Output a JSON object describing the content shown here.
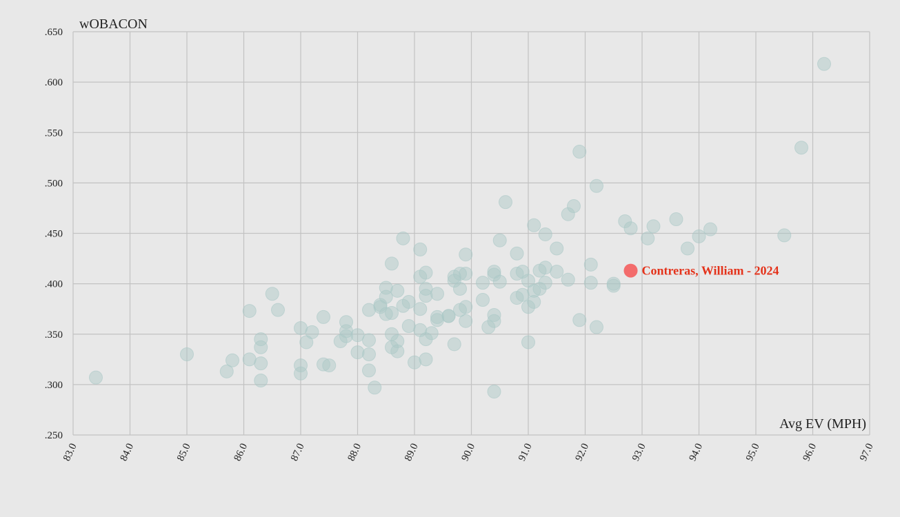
{
  "chart_data": {
    "type": "scatter",
    "xlabel": "Avg EV (MPH)",
    "ylabel": "wOBACON",
    "xlim": [
      83.0,
      97.0
    ],
    "ylim": [
      0.25,
      0.65
    ],
    "x_ticks": [
      "83.0",
      "84.0",
      "85.0",
      "86.0",
      "87.0",
      "88.0",
      "89.0",
      "90.0",
      "91.0",
      "92.0",
      "93.0",
      "94.0",
      "95.0",
      "96.0",
      "97.0"
    ],
    "y_ticks": [
      ".250",
      ".300",
      ".350",
      ".400",
      ".450",
      ".500",
      ".550",
      ".600",
      ".650"
    ],
    "grid": true,
    "highlight": {
      "label": "Contreras, William - 2024",
      "x": 92.8,
      "y": 0.413,
      "color": "#f36c6c"
    },
    "points": [
      [
        83.4,
        0.307
      ],
      [
        85.0,
        0.33
      ],
      [
        85.7,
        0.313
      ],
      [
        85.8,
        0.324
      ],
      [
        86.1,
        0.325
      ],
      [
        86.1,
        0.373
      ],
      [
        86.3,
        0.345
      ],
      [
        86.3,
        0.337
      ],
      [
        86.3,
        0.321
      ],
      [
        86.3,
        0.304
      ],
      [
        86.5,
        0.39
      ],
      [
        86.6,
        0.374
      ],
      [
        87.0,
        0.356
      ],
      [
        87.0,
        0.319
      ],
      [
        87.0,
        0.311
      ],
      [
        87.1,
        0.342
      ],
      [
        87.2,
        0.352
      ],
      [
        87.4,
        0.367
      ],
      [
        87.4,
        0.32
      ],
      [
        87.5,
        0.319
      ],
      [
        87.7,
        0.343
      ],
      [
        87.8,
        0.362
      ],
      [
        87.8,
        0.353
      ],
      [
        87.8,
        0.348
      ],
      [
        88.0,
        0.349
      ],
      [
        88.0,
        0.332
      ],
      [
        88.2,
        0.374
      ],
      [
        88.2,
        0.344
      ],
      [
        88.2,
        0.33
      ],
      [
        88.2,
        0.314
      ],
      [
        88.3,
        0.297
      ],
      [
        88.4,
        0.379
      ],
      [
        88.4,
        0.377
      ],
      [
        88.5,
        0.396
      ],
      [
        88.5,
        0.387
      ],
      [
        88.5,
        0.37
      ],
      [
        88.6,
        0.42
      ],
      [
        88.6,
        0.371
      ],
      [
        88.6,
        0.35
      ],
      [
        88.6,
        0.337
      ],
      [
        88.7,
        0.393
      ],
      [
        88.7,
        0.343
      ],
      [
        88.7,
        0.333
      ],
      [
        88.8,
        0.445
      ],
      [
        88.8,
        0.378
      ],
      [
        88.9,
        0.382
      ],
      [
        88.9,
        0.358
      ],
      [
        89.0,
        0.322
      ],
      [
        89.1,
        0.434
      ],
      [
        89.1,
        0.407
      ],
      [
        89.1,
        0.375
      ],
      [
        89.1,
        0.354
      ],
      [
        89.2,
        0.411
      ],
      [
        89.2,
        0.395
      ],
      [
        89.2,
        0.388
      ],
      [
        89.2,
        0.345
      ],
      [
        89.2,
        0.325
      ],
      [
        89.3,
        0.351
      ],
      [
        89.4,
        0.39
      ],
      [
        89.4,
        0.367
      ],
      [
        89.4,
        0.364
      ],
      [
        89.6,
        0.368
      ],
      [
        89.6,
        0.368
      ],
      [
        89.7,
        0.407
      ],
      [
        89.7,
        0.403
      ],
      [
        89.7,
        0.34
      ],
      [
        89.8,
        0.41
      ],
      [
        89.8,
        0.395
      ],
      [
        89.8,
        0.374
      ],
      [
        89.9,
        0.429
      ],
      [
        89.9,
        0.41
      ],
      [
        89.9,
        0.377
      ],
      [
        89.9,
        0.363
      ],
      [
        90.2,
        0.401
      ],
      [
        90.2,
        0.384
      ],
      [
        90.3,
        0.357
      ],
      [
        90.4,
        0.412
      ],
      [
        90.4,
        0.409
      ],
      [
        90.4,
        0.369
      ],
      [
        90.4,
        0.363
      ],
      [
        90.4,
        0.293
      ],
      [
        90.5,
        0.443
      ],
      [
        90.5,
        0.402
      ],
      [
        90.6,
        0.481
      ],
      [
        90.8,
        0.43
      ],
      [
        90.8,
        0.41
      ],
      [
        90.8,
        0.386
      ],
      [
        90.9,
        0.412
      ],
      [
        90.9,
        0.389
      ],
      [
        91.0,
        0.403
      ],
      [
        91.0,
        0.377
      ],
      [
        91.0,
        0.342
      ],
      [
        91.1,
        0.458
      ],
      [
        91.1,
        0.393
      ],
      [
        91.1,
        0.382
      ],
      [
        91.2,
        0.413
      ],
      [
        91.2,
        0.395
      ],
      [
        91.3,
        0.449
      ],
      [
        91.3,
        0.416
      ],
      [
        91.3,
        0.401
      ],
      [
        91.5,
        0.435
      ],
      [
        91.5,
        0.412
      ],
      [
        91.7,
        0.469
      ],
      [
        91.7,
        0.404
      ],
      [
        91.8,
        0.477
      ],
      [
        91.9,
        0.531
      ],
      [
        91.9,
        0.364
      ],
      [
        92.1,
        0.419
      ],
      [
        92.1,
        0.401
      ],
      [
        92.2,
        0.497
      ],
      [
        92.2,
        0.357
      ],
      [
        92.5,
        0.4
      ],
      [
        92.5,
        0.398
      ],
      [
        92.7,
        0.462
      ],
      [
        92.8,
        0.455
      ],
      [
        93.1,
        0.445
      ],
      [
        93.2,
        0.457
      ],
      [
        93.6,
        0.464
      ],
      [
        93.8,
        0.435
      ],
      [
        94.0,
        0.447
      ],
      [
        94.2,
        0.454
      ],
      [
        95.5,
        0.448
      ],
      [
        95.8,
        0.535
      ],
      [
        96.2,
        0.618
      ]
    ]
  }
}
